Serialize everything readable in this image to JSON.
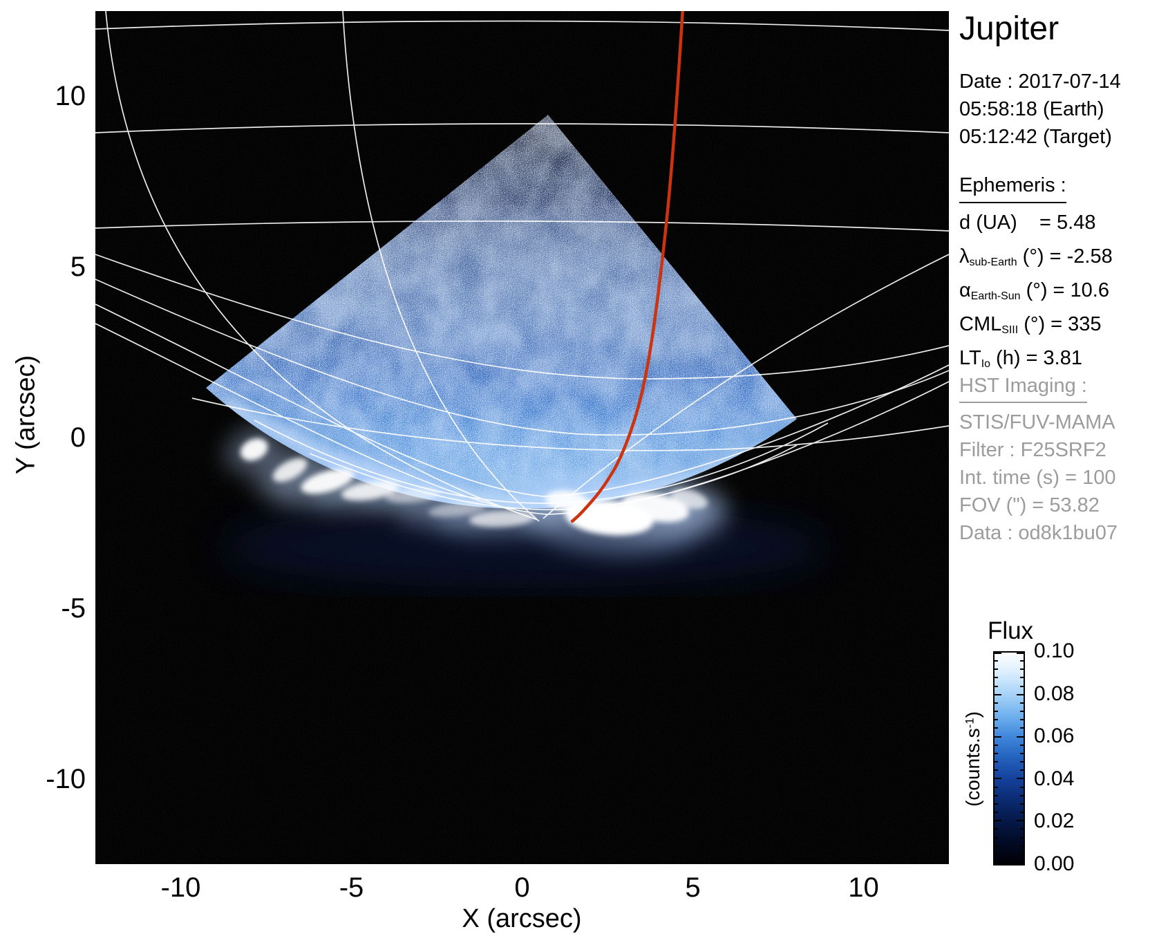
{
  "figure": {
    "title": "Jupiter",
    "observation": {
      "date_line": "Date : 2017-07-14",
      "time_earth": "05:58:18 (Earth)",
      "time_target": "05:12:42 (Target)"
    },
    "ephemeris": {
      "header": "Ephemeris :",
      "rows": [
        {
          "sym": "d",
          "sub": "",
          "tail": " (UA)    = 5.48"
        },
        {
          "sym": "λ",
          "sub": "sub-Earth",
          "tail": " (°) = -2.58"
        },
        {
          "sym": "α",
          "sub": "Earth-Sun",
          "tail": " (°) = 10.6"
        },
        {
          "sym": "CML",
          "sub": "SIII",
          "tail": " (°) = 335"
        },
        {
          "sym": "LT",
          "sub": "Io",
          "tail": " (h) = 3.81"
        }
      ]
    },
    "hst": {
      "header": "HST Imaging :",
      "lines": [
        "STIS/FUV-MAMA",
        "Filter : F25SRF2",
        "Int. time (s) = 100",
        "FOV (\") = 53.82",
        "Data : od8k1bu07"
      ]
    }
  },
  "chart_data": {
    "type": "heatmap",
    "title": "Jupiter",
    "xlabel": "X (arcsec)",
    "ylabel": "Y (arcsec)",
    "xlim": [
      -12.5,
      12.5
    ],
    "ylim": [
      -12.5,
      12.5
    ],
    "x_tick_labels": [
      "-10",
      "-5",
      "0",
      "5",
      "10"
    ],
    "x_tick_values": [
      -10,
      -5,
      0,
      5,
      10
    ],
    "y_tick_labels": [
      "10",
      "5",
      "0",
      "-5",
      "-10"
    ],
    "y_tick_values": [
      10,
      5,
      0,
      -5,
      -10
    ],
    "grid": true,
    "legend_position": "none",
    "colorbar": {
      "title": "Flux",
      "unit_pre": "(counts.s",
      "unit_sup": "-1",
      "unit_post": ")",
      "min": 0.0,
      "max": 0.1,
      "tick_labels": [
        "0.10",
        "0.08",
        "0.06",
        "0.04",
        "0.02",
        "0.00"
      ]
    },
    "image_description": "HST/STIS far-UV image of Jupiter: sunlit disk wedge (STIS field of view corner) of noisy blue emission, white planetocentric lat/lon graticule with planetary limb arcs, bright white auroral emission spots along the limb, and a red Io-footprint meridian track.",
    "flux_range_counts_per_s": [
      0.0,
      0.1
    ],
    "aurora_features_arcsec": [
      {
        "x": -7.85,
        "y": -0.35,
        "rx": 0.42,
        "ry": 0.3,
        "rot": -25,
        "o": 0.95
      },
      {
        "x": -6.8,
        "y": -0.95,
        "rx": 0.55,
        "ry": 0.26,
        "rot": -28,
        "o": 0.85
      },
      {
        "x": -5.7,
        "y": -1.28,
        "rx": 0.8,
        "ry": 0.3,
        "rot": -16,
        "o": 0.95
      },
      {
        "x": -4.45,
        "y": -1.55,
        "rx": 0.85,
        "ry": 0.26,
        "rot": -9,
        "o": 0.85
      },
      {
        "x": -3.2,
        "y": -1.7,
        "rx": 0.8,
        "ry": 0.2,
        "rot": -5,
        "o": 0.5
      },
      {
        "x": -1.9,
        "y": -2.1,
        "rx": 0.85,
        "ry": 0.2,
        "rot": -7,
        "o": 0.45
      },
      {
        "x": -0.6,
        "y": -2.38,
        "rx": 0.95,
        "ry": 0.24,
        "rot": -3,
        "o": 0.7
      },
      {
        "x": 1.3,
        "y": -1.85,
        "rx": 0.62,
        "ry": 0.3,
        "rot": 6,
        "o": 0.9
      },
      {
        "x": 2.55,
        "y": -2.35,
        "rx": 1.3,
        "ry": 0.5,
        "rot": 5,
        "o": 1.0
      },
      {
        "x": 3.9,
        "y": -2.05,
        "rx": 1.0,
        "ry": 0.4,
        "rot": 10,
        "o": 0.95
      },
      {
        "x": 4.9,
        "y": -1.8,
        "rx": 0.55,
        "ry": 0.26,
        "rot": 16,
        "o": 0.7
      }
    ],
    "io_footprint_track_arcsec": [
      [
        4.7,
        12.5
      ],
      [
        4.45,
        8.5
      ],
      [
        4.05,
        4.6
      ],
      [
        3.6,
        1.5
      ],
      [
        3.0,
        -0.4
      ],
      [
        2.4,
        -1.45
      ],
      [
        1.75,
        -2.2
      ],
      [
        1.47,
        -2.45
      ]
    ],
    "overlay_colors": {
      "graticule": "#ffffff",
      "io_track": "#cc3311",
      "background": "#000000"
    }
  }
}
